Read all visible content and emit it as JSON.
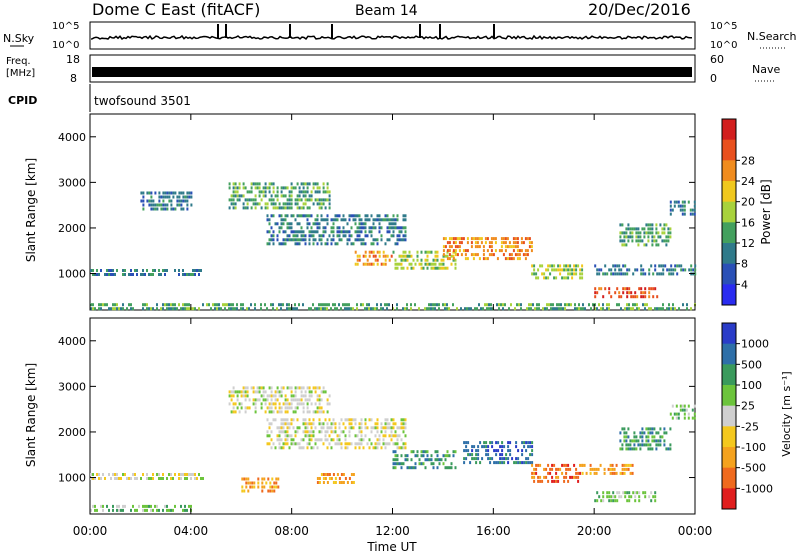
{
  "header": {
    "radar": "Dome C East (fitACF)",
    "beam": "Beam 14",
    "date": "20/Dec/2016"
  },
  "panels": {
    "nsky": {
      "label": "N.Sky",
      "ticks": [
        "10^5",
        "10^0"
      ],
      "right_label": "N.Search",
      "right_ticks": [
        "10^5",
        "10^0"
      ]
    },
    "freq": {
      "label_line1": "Freq.",
      "label_line2": "[MHz]",
      "ticks": [
        "18",
        "8"
      ],
      "right_label": "Nave",
      "right_ticks": [
        "60",
        "0"
      ]
    },
    "cpid": {
      "label": "CPID",
      "value": "twofsound 3501"
    }
  },
  "colors": {
    "power": [
      "#2a2cf0",
      "#2a50b6",
      "#2f7a8a",
      "#43a05e",
      "#a8d23c",
      "#f0c81e",
      "#f08c1e",
      "#e8501e",
      "#d21e1e"
    ],
    "velocity": [
      "#e01e1e",
      "#ef6a1e",
      "#f4a21e",
      "#f4c81e",
      "#cfcfcf",
      "#6cc43c",
      "#3a9a5c",
      "#2e6fa8",
      "#2a3cc8"
    ]
  },
  "chart_data": [
    {
      "type": "heatmap",
      "name": "power",
      "xlabel": "",
      "ylabel": "Slant Range [km]",
      "yticks": [
        "1000",
        "2000",
        "3000",
        "4000"
      ],
      "xlim": [
        0,
        24
      ],
      "ylim": [
        200,
        4500
      ],
      "colorbar_label": "Power [dB]",
      "colorbar_ticks": [
        "4",
        "8",
        "12",
        "16",
        "20",
        "24",
        "28"
      ],
      "regions": [
        {
          "x0": 0.0,
          "x1": 24.0,
          "y0": 250,
          "y1": 350,
          "level": 3
        },
        {
          "x0": 0.0,
          "x1": 4.5,
          "y0": 950,
          "y1": 1100,
          "level": 2
        },
        {
          "x0": 2.0,
          "x1": 4.0,
          "y0": 2400,
          "y1": 2800,
          "level": 2
        },
        {
          "x0": 5.5,
          "x1": 9.5,
          "y0": 2400,
          "y1": 3000,
          "level": 3
        },
        {
          "x0": 7.0,
          "x1": 12.5,
          "y0": 1600,
          "y1": 2300,
          "level": 2
        },
        {
          "x0": 10.5,
          "x1": 12.0,
          "y0": 1200,
          "y1": 1500,
          "level": 6
        },
        {
          "x0": 12.0,
          "x1": 14.5,
          "y0": 1100,
          "y1": 1500,
          "level": 4
        },
        {
          "x0": 14.0,
          "x1": 17.5,
          "y0": 1300,
          "y1": 1800,
          "level": 6
        },
        {
          "x0": 17.5,
          "x1": 19.5,
          "y0": 900,
          "y1": 1200,
          "level": 4
        },
        {
          "x0": 20.0,
          "x1": 22.5,
          "y0": 500,
          "y1": 700,
          "level": 7
        },
        {
          "x0": 20.0,
          "x1": 24.0,
          "y0": 1000,
          "y1": 1200,
          "level": 2
        },
        {
          "x0": 21.0,
          "x1": 23.0,
          "y0": 1600,
          "y1": 2100,
          "level": 3
        },
        {
          "x0": 23.0,
          "x1": 24.0,
          "y0": 2300,
          "y1": 2600,
          "level": 2
        }
      ]
    },
    {
      "type": "heatmap",
      "name": "velocity",
      "xlabel": "Time UT",
      "ylabel": "Slant Range [km]",
      "xticks": [
        "00:00",
        "04:00",
        "08:00",
        "12:00",
        "16:00",
        "20:00",
        "00:00"
      ],
      "yticks": [
        "1000",
        "2000",
        "3000",
        "4000"
      ],
      "xlim": [
        0,
        24
      ],
      "ylim": [
        200,
        4500
      ],
      "colorbar_label": "Velocity [m s⁻¹]",
      "colorbar_ticks": [
        "1000",
        "500",
        "100",
        "25",
        "-25",
        "-100",
        "-500",
        "-1000"
      ],
      "regions": [
        {
          "x0": 0.0,
          "x1": 4.0,
          "y0": 250,
          "y1": 400,
          "level": 5
        },
        {
          "x0": 0.0,
          "x1": 4.5,
          "y0": 950,
          "y1": 1100,
          "level": 4
        },
        {
          "x0": 5.5,
          "x1": 9.5,
          "y0": 2400,
          "y1": 3000,
          "level": 4
        },
        {
          "x0": 6.0,
          "x1": 7.5,
          "y0": 700,
          "y1": 1000,
          "level": 2
        },
        {
          "x0": 9.0,
          "x1": 10.5,
          "y0": 900,
          "y1": 1100,
          "level": 2
        },
        {
          "x0": 7.0,
          "x1": 12.5,
          "y0": 1600,
          "y1": 2300,
          "level": 4
        },
        {
          "x0": 12.0,
          "x1": 14.5,
          "y0": 1200,
          "y1": 1600,
          "level": 6
        },
        {
          "x0": 14.8,
          "x1": 17.5,
          "y0": 1300,
          "y1": 1800,
          "level": 7
        },
        {
          "x0": 17.5,
          "x1": 19.5,
          "y0": 900,
          "y1": 1300,
          "level": 1
        },
        {
          "x0": 19.5,
          "x1": 21.5,
          "y0": 1100,
          "y1": 1300,
          "level": 2
        },
        {
          "x0": 20.0,
          "x1": 22.5,
          "y0": 500,
          "y1": 700,
          "level": 5
        },
        {
          "x0": 21.0,
          "x1": 23.0,
          "y0": 1600,
          "y1": 2100,
          "level": 6
        },
        {
          "x0": 23.0,
          "x1": 24.0,
          "y0": 2300,
          "y1": 2600,
          "level": 5
        }
      ]
    }
  ]
}
